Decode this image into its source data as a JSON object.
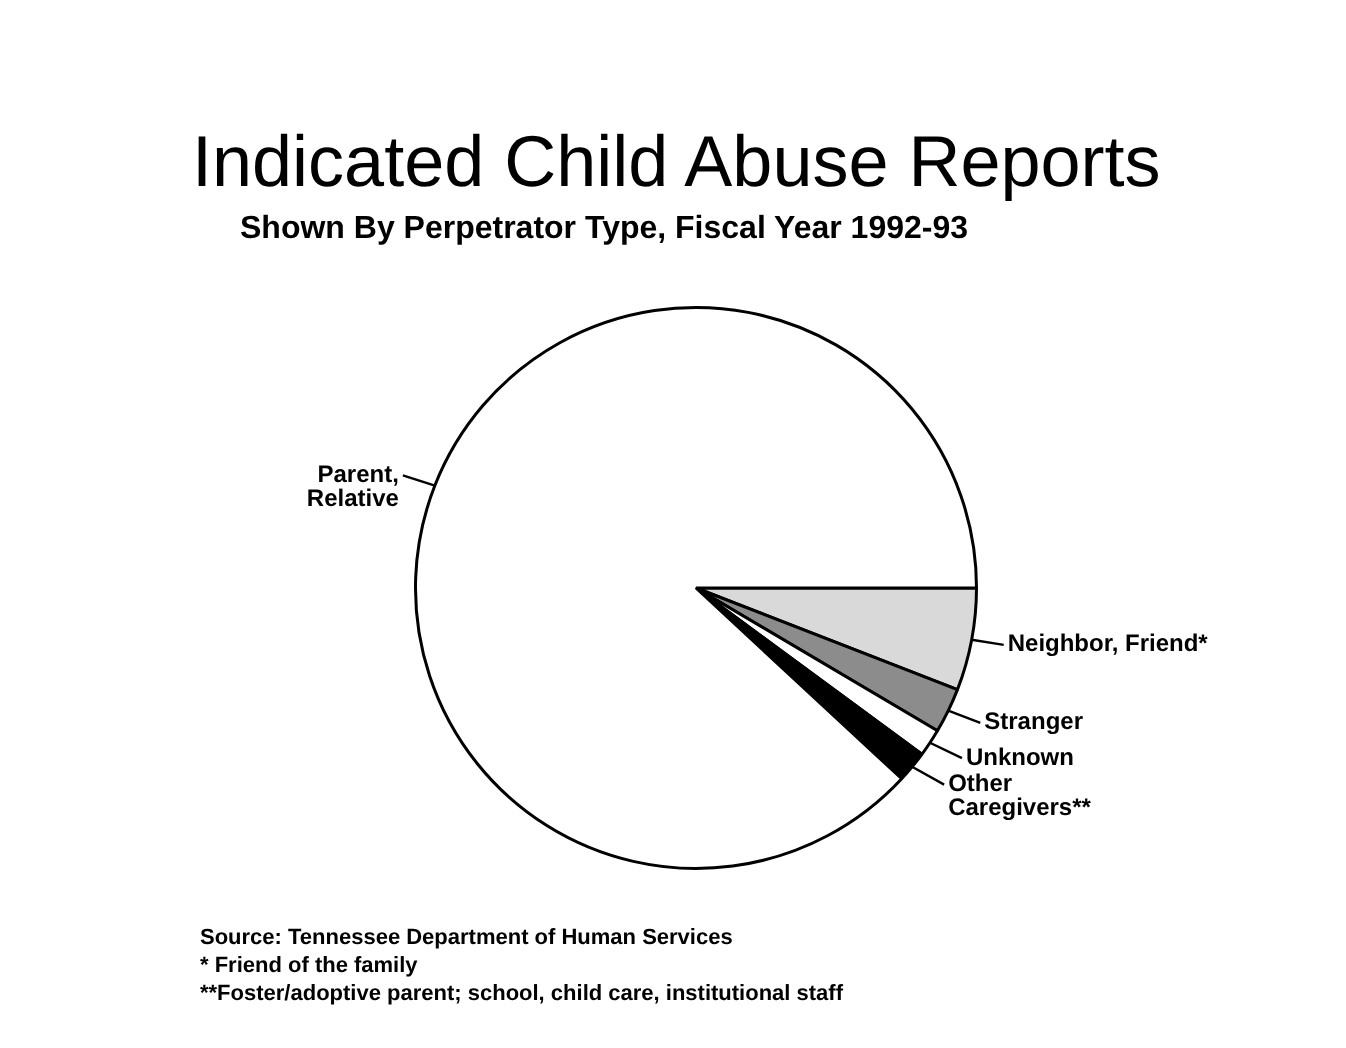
{
  "chart_data": {
    "type": "pie",
    "title": "Indicated Child Abuse Reports",
    "subtitle": "Shown By Perpetrator Type, Fiscal Year 1992-93",
    "categories": [
      "Neighbor, Friend*",
      "Stranger",
      "Unknown",
      "Other\nCaregivers**",
      "Parent,\nRelative"
    ],
    "values": [
      5.9,
      2.6,
      1.6,
      1.8,
      88.1
    ],
    "colors": [
      "#d9d9d9",
      "#8c8c8c",
      "#ffffff",
      "#000000",
      "#ffffff"
    ],
    "annotations": [
      "Source: Tennessee Department of Human Services",
      "* Friend of the family",
      "**Foster/adoptive parent; school, child care, institutional staff"
    ]
  }
}
